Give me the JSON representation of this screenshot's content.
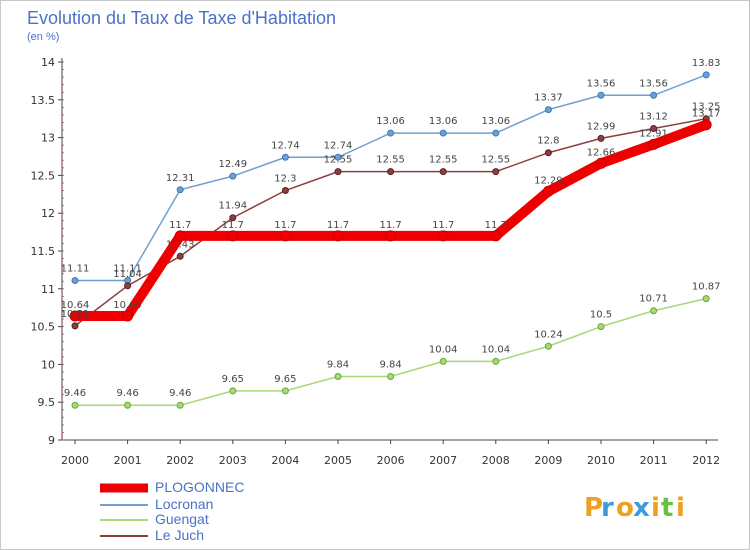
{
  "chart_data": {
    "type": "line",
    "title": "Evolution du Taux de Taxe d'Habitation",
    "subtitle": "(en %)",
    "xlabel": "",
    "ylabel": "",
    "x": [
      "2000",
      "2001",
      "2002",
      "2003",
      "2004",
      "2005",
      "2006",
      "2007",
      "2008",
      "2009",
      "2010",
      "2011",
      "2012"
    ],
    "ylim": [
      9,
      14
    ],
    "y_ticks": [
      "9",
      "9.5",
      "10",
      "10.5",
      "11",
      "11.5",
      "12",
      "12.5",
      "13",
      "13.5",
      "14"
    ],
    "grid": false,
    "legend_position": "bottom-left",
    "series": [
      {
        "name": "PLOGONNEC",
        "color": "#ee0000",
        "values": [
          10.64,
          10.64,
          11.7,
          11.7,
          11.7,
          11.7,
          11.7,
          11.7,
          11.7,
          12.29,
          12.66,
          12.91,
          13.17
        ],
        "labels": [
          "10.64",
          "10.64",
          "11.7",
          "11.7",
          "11.7",
          "11.7",
          "11.7",
          "11.7",
          "11.7",
          "12.29",
          "12.66",
          "12.91",
          "13.17"
        ]
      },
      {
        "name": "Locronan",
        "color": "#6fa0d0",
        "values": [
          11.11,
          11.11,
          12.31,
          12.49,
          12.74,
          12.74,
          13.06,
          13.06,
          13.06,
          13.37,
          13.56,
          13.56,
          13.83
        ],
        "labels": [
          "11.11",
          "11.11",
          "12.31",
          "12.49",
          "12.74",
          "12.74",
          "13.06",
          "13.06",
          "13.06",
          "13.37",
          "13.56",
          "13.56",
          "13.83"
        ]
      },
      {
        "name": "Guengat",
        "color": "#a8d878",
        "values": [
          9.46,
          9.46,
          9.46,
          9.65,
          9.65,
          9.84,
          9.84,
          10.04,
          10.04,
          10.24,
          10.5,
          10.71,
          10.87
        ],
        "labels": [
          "9.46",
          "9.46",
          "9.46",
          "9.65",
          "9.65",
          "9.84",
          "9.84",
          "10.04",
          "10.04",
          "10.24",
          "10.5",
          "10.71",
          "10.87"
        ]
      },
      {
        "name": "Le Juch",
        "color": "#8b4040",
        "values": [
          10.51,
          11.04,
          11.43,
          11.94,
          12.3,
          12.55,
          12.55,
          12.55,
          12.55,
          12.8,
          12.99,
          13.12,
          13.25
        ],
        "labels": [
          "10.51",
          "11.04",
          "11.43",
          "11.94",
          "12.3",
          "12.55",
          "12.55",
          "12.55",
          "12.55",
          "12.8",
          "12.99",
          "13.12",
          "13.25"
        ]
      }
    ]
  },
  "logo": {
    "letters": [
      "P",
      "r",
      "o",
      "x",
      "i",
      "t",
      "i"
    ],
    "colors": [
      "#f0a020",
      "#3f9be0",
      "#f0a020",
      "#3f9be0",
      "#f0a020",
      "#6ac040",
      "#f0a020"
    ]
  }
}
